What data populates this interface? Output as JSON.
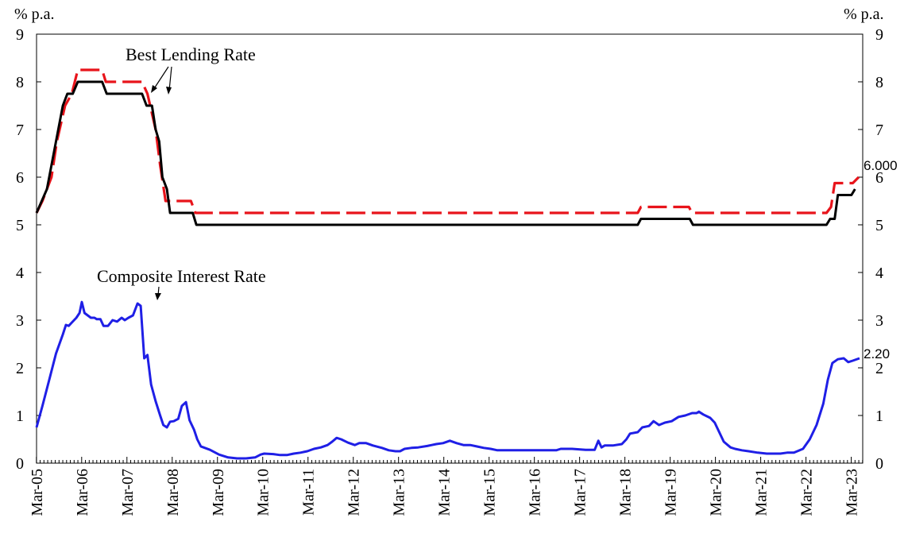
{
  "chart_data": {
    "type": "line",
    "y_unit_left": "% p.a.",
    "y_unit_right": "% p.a.",
    "ylim": [
      0,
      9
    ],
    "y_ticks": [
      "0",
      "1",
      "2",
      "3",
      "4",
      "5",
      "6",
      "7",
      "8",
      "9"
    ],
    "x_range": [
      2005.17,
      2023.42
    ],
    "x_ticks": [
      "Mar-05",
      "Mar-06",
      "Mar-07",
      "Mar-08",
      "Mar-09",
      "Mar-10",
      "Mar-11",
      "Mar-12",
      "Mar-13",
      "Mar-14",
      "Mar-15",
      "Mar-16",
      "Mar-17",
      "Mar-18",
      "Mar-19",
      "Mar-20",
      "Mar-21",
      "Mar-22",
      "Mar-23"
    ],
    "grid": false,
    "series": [
      {
        "key": "blr_high",
        "color": "#e8141b",
        "style": "dashed",
        "points": [
          [
            2005.17,
            5.25
          ],
          [
            2005.3,
            5.5
          ],
          [
            2005.5,
            6.0
          ],
          [
            2005.62,
            6.75
          ],
          [
            2005.8,
            7.5
          ],
          [
            2005.95,
            7.75
          ],
          [
            2006.08,
            8.25
          ],
          [
            2006.62,
            8.25
          ],
          [
            2006.7,
            8.0
          ],
          [
            2007.5,
            8.0
          ],
          [
            2007.62,
            7.75
          ],
          [
            2007.8,
            7.0
          ],
          [
            2007.9,
            6.25
          ],
          [
            2008.02,
            5.5
          ],
          [
            2008.58,
            5.5
          ],
          [
            2008.68,
            5.25
          ],
          [
            2018.45,
            5.25
          ],
          [
            2018.52,
            5.375
          ],
          [
            2019.58,
            5.375
          ],
          [
            2019.65,
            5.25
          ],
          [
            2022.62,
            5.25
          ],
          [
            2022.72,
            5.375
          ],
          [
            2022.8,
            5.875
          ],
          [
            2023.2,
            5.875
          ],
          [
            2023.33,
            6.0
          ]
        ]
      },
      {
        "key": "blr_low",
        "color": "#000000",
        "style": "solid",
        "points": [
          [
            2005.17,
            5.25
          ],
          [
            2005.4,
            5.75
          ],
          [
            2005.6,
            6.75
          ],
          [
            2005.75,
            7.5
          ],
          [
            2005.85,
            7.75
          ],
          [
            2005.97,
            7.75
          ],
          [
            2006.08,
            8.0
          ],
          [
            2006.62,
            8.0
          ],
          [
            2006.72,
            7.75
          ],
          [
            2007.5,
            7.75
          ],
          [
            2007.6,
            7.5
          ],
          [
            2007.72,
            7.5
          ],
          [
            2007.8,
            7.0
          ],
          [
            2007.88,
            6.75
          ],
          [
            2007.95,
            6.0
          ],
          [
            2008.05,
            5.75
          ],
          [
            2008.12,
            5.25
          ],
          [
            2008.62,
            5.25
          ],
          [
            2008.7,
            5.0
          ],
          [
            2018.45,
            5.0
          ],
          [
            2018.52,
            5.125
          ],
          [
            2019.6,
            5.125
          ],
          [
            2019.67,
            5.0
          ],
          [
            2022.62,
            5.0
          ],
          [
            2022.7,
            5.125
          ],
          [
            2022.8,
            5.125
          ],
          [
            2022.87,
            5.625
          ],
          [
            2023.17,
            5.625
          ],
          [
            2023.25,
            5.75
          ]
        ]
      },
      {
        "key": "composite",
        "color": "#1f1fe6",
        "style": "solid",
        "points": [
          [
            2005.17,
            0.75
          ],
          [
            2005.3,
            1.2
          ],
          [
            2005.45,
            1.75
          ],
          [
            2005.6,
            2.3
          ],
          [
            2005.75,
            2.7
          ],
          [
            2005.82,
            2.9
          ],
          [
            2005.88,
            2.88
          ],
          [
            2005.95,
            2.95
          ],
          [
            2006.05,
            3.05
          ],
          [
            2006.12,
            3.15
          ],
          [
            2006.17,
            3.38
          ],
          [
            2006.23,
            3.15
          ],
          [
            2006.3,
            3.1
          ],
          [
            2006.37,
            3.05
          ],
          [
            2006.45,
            3.05
          ],
          [
            2006.5,
            3.02
          ],
          [
            2006.58,
            3.02
          ],
          [
            2006.65,
            2.88
          ],
          [
            2006.75,
            2.88
          ],
          [
            2006.85,
            3.0
          ],
          [
            2006.95,
            2.97
          ],
          [
            2007.05,
            3.05
          ],
          [
            2007.12,
            3.0
          ],
          [
            2007.2,
            3.05
          ],
          [
            2007.3,
            3.1
          ],
          [
            2007.4,
            3.35
          ],
          [
            2007.47,
            3.3
          ],
          [
            2007.55,
            2.2
          ],
          [
            2007.62,
            2.27
          ],
          [
            2007.7,
            1.65
          ],
          [
            2007.8,
            1.3
          ],
          [
            2007.9,
            1.0
          ],
          [
            2007.97,
            0.8
          ],
          [
            2008.05,
            0.75
          ],
          [
            2008.12,
            0.87
          ],
          [
            2008.2,
            0.88
          ],
          [
            2008.3,
            0.93
          ],
          [
            2008.38,
            1.2
          ],
          [
            2008.47,
            1.28
          ],
          [
            2008.55,
            0.9
          ],
          [
            2008.65,
            0.7
          ],
          [
            2008.72,
            0.5
          ],
          [
            2008.8,
            0.35
          ],
          [
            2009.0,
            0.28
          ],
          [
            2009.2,
            0.18
          ],
          [
            2009.4,
            0.12
          ],
          [
            2009.6,
            0.1
          ],
          [
            2009.8,
            0.1
          ],
          [
            2010.0,
            0.12
          ],
          [
            2010.12,
            0.18
          ],
          [
            2010.2,
            0.2
          ],
          [
            2010.4,
            0.19
          ],
          [
            2010.55,
            0.17
          ],
          [
            2010.7,
            0.17
          ],
          [
            2010.85,
            0.2
          ],
          [
            2011.0,
            0.22
          ],
          [
            2011.15,
            0.25
          ],
          [
            2011.3,
            0.3
          ],
          [
            2011.45,
            0.33
          ],
          [
            2011.6,
            0.38
          ],
          [
            2011.7,
            0.45
          ],
          [
            2011.8,
            0.53
          ],
          [
            2011.9,
            0.5
          ],
          [
            2012.05,
            0.43
          ],
          [
            2012.2,
            0.38
          ],
          [
            2012.3,
            0.42
          ],
          [
            2012.45,
            0.42
          ],
          [
            2012.6,
            0.37
          ],
          [
            2012.8,
            0.32
          ],
          [
            2012.95,
            0.27
          ],
          [
            2013.1,
            0.25
          ],
          [
            2013.2,
            0.25
          ],
          [
            2013.3,
            0.3
          ],
          [
            2013.45,
            0.32
          ],
          [
            2013.6,
            0.33
          ],
          [
            2013.8,
            0.36
          ],
          [
            2013.9,
            0.38
          ],
          [
            2014.0,
            0.4
          ],
          [
            2014.15,
            0.42
          ],
          [
            2014.3,
            0.47
          ],
          [
            2014.45,
            0.42
          ],
          [
            2014.6,
            0.38
          ],
          [
            2014.75,
            0.38
          ],
          [
            2014.9,
            0.35
          ],
          [
            2015.05,
            0.32
          ],
          [
            2015.2,
            0.3
          ],
          [
            2015.35,
            0.27
          ],
          [
            2015.6,
            0.27
          ],
          [
            2016.0,
            0.27
          ],
          [
            2016.4,
            0.27
          ],
          [
            2016.65,
            0.27
          ],
          [
            2016.75,
            0.3
          ],
          [
            2017.0,
            0.3
          ],
          [
            2017.3,
            0.28
          ],
          [
            2017.5,
            0.28
          ],
          [
            2017.58,
            0.47
          ],
          [
            2017.65,
            0.33
          ],
          [
            2017.72,
            0.37
          ],
          [
            2017.9,
            0.37
          ],
          [
            2018.1,
            0.4
          ],
          [
            2018.2,
            0.5
          ],
          [
            2018.28,
            0.62
          ],
          [
            2018.45,
            0.65
          ],
          [
            2018.55,
            0.75
          ],
          [
            2018.7,
            0.78
          ],
          [
            2018.8,
            0.88
          ],
          [
            2018.92,
            0.8
          ],
          [
            2019.05,
            0.85
          ],
          [
            2019.2,
            0.88
          ],
          [
            2019.35,
            0.97
          ],
          [
            2019.5,
            1.0
          ],
          [
            2019.65,
            1.05
          ],
          [
            2019.75,
            1.05
          ],
          [
            2019.8,
            1.08
          ],
          [
            2019.9,
            1.02
          ],
          [
            2020.05,
            0.95
          ],
          [
            2020.15,
            0.85
          ],
          [
            2020.25,
            0.65
          ],
          [
            2020.35,
            0.45
          ],
          [
            2020.5,
            0.33
          ],
          [
            2020.6,
            0.3
          ],
          [
            2020.75,
            0.27
          ],
          [
            2020.9,
            0.25
          ],
          [
            2021.1,
            0.22
          ],
          [
            2021.3,
            0.2
          ],
          [
            2021.6,
            0.2
          ],
          [
            2021.75,
            0.22
          ],
          [
            2021.9,
            0.22
          ],
          [
            2022.1,
            0.3
          ],
          [
            2022.25,
            0.5
          ],
          [
            2022.4,
            0.8
          ],
          [
            2022.55,
            1.25
          ],
          [
            2022.65,
            1.75
          ],
          [
            2022.75,
            2.1
          ],
          [
            2022.87,
            2.18
          ],
          [
            2023.0,
            2.2
          ],
          [
            2023.1,
            2.12
          ],
          [
            2023.2,
            2.15
          ],
          [
            2023.35,
            2.2
          ]
        ]
      }
    ],
    "annotations": {
      "blr_label": "Best Lending  Rate",
      "composite_label": "Composite  Interest  Rate",
      "blr_end_value": "6.000",
      "composite_end_value": "2.20"
    }
  }
}
